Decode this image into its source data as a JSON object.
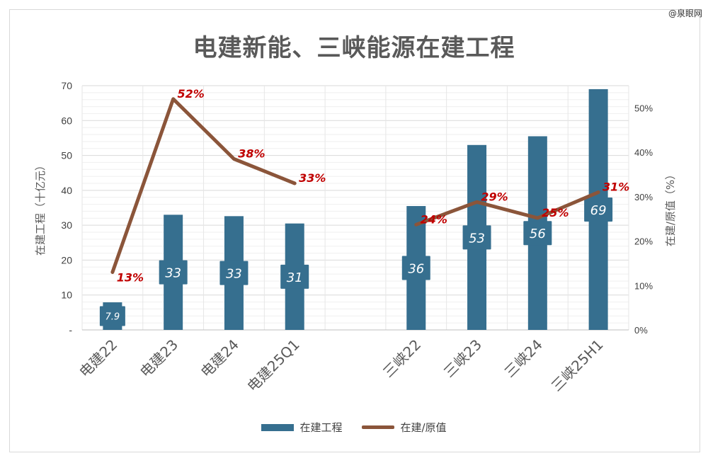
{
  "watermark": "@泉眼网",
  "chart_data": {
    "type": "bar",
    "title": "电建新能、三峡能源在建工程",
    "categories": [
      "电建22",
      "电建23",
      "电建24",
      "电建25Q1",
      "",
      "三峡22",
      "三峡23",
      "三峡24",
      "三峡25H1"
    ],
    "ylabel": "在建工程（十亿元）",
    "y2label": "在建/原值（%）",
    "ylim": [
      0,
      70
    ],
    "y2lim": [
      0,
      55
    ],
    "y_ticks": [
      "-",
      "10",
      "20",
      "30",
      "40",
      "50",
      "60",
      "70"
    ],
    "y2_ticks": [
      "0%",
      "10%",
      "20%",
      "30%",
      "40%",
      "50%"
    ],
    "grid": true,
    "legend_position": "bottom",
    "series": [
      {
        "name": "在建工程",
        "type": "bar",
        "color": "#366F8F",
        "values": [
          7.9,
          33,
          32.6,
          30.5,
          null,
          35.5,
          53,
          55.5,
          69
        ],
        "labels": [
          "7.9",
          "33",
          "33",
          "31",
          "",
          "36",
          "53",
          "56",
          "69"
        ]
      },
      {
        "name": "在建/原值",
        "type": "line",
        "color": "#8B553A",
        "axis": "right",
        "values": [
          13,
          52,
          38.5,
          33,
          null,
          23.7,
          28.8,
          25.2,
          31
        ],
        "labels": [
          "13%",
          "52%",
          "38%",
          "33%",
          "",
          "24%",
          "29%",
          "25%",
          "31%"
        ]
      }
    ]
  }
}
